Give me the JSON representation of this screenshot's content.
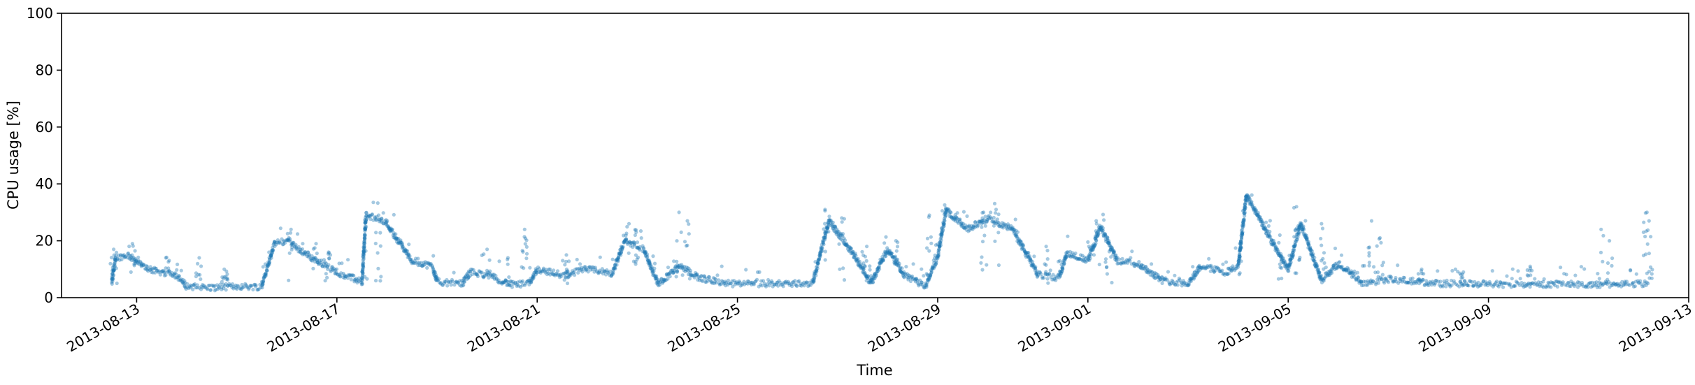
{
  "chart_data": {
    "type": "scatter",
    "title": "",
    "xlabel": "Time",
    "ylabel": "CPU usage [%]",
    "ylim": [
      0,
      100
    ],
    "xlim": [
      "2013-08-11T12:00",
      "2013-09-13T00:00"
    ],
    "yticks": [
      "0",
      "20",
      "40",
      "60",
      "80",
      "100"
    ],
    "xticks": [
      "2013-08-13",
      "2013-08-17",
      "2013-08-21",
      "2013-08-25",
      "2013-08-29",
      "2013-09-01",
      "2013-09-05",
      "2013-09-09",
      "2013-09-13"
    ],
    "grid": false,
    "legend": "none",
    "colors": {
      "point": "#1f77b4",
      "axes": "#000000"
    },
    "marker_opacity": 0.4,
    "series": [
      {
        "trend": [
          [
            "2013-08-12T12:00",
            5
          ],
          [
            "2013-08-12T14:00",
            14
          ],
          [
            "2013-08-12T20:00",
            15
          ],
          [
            "2013-08-13T03:00",
            11
          ],
          [
            "2013-08-13T10:00",
            9
          ],
          [
            "2013-08-13T18:00",
            8.5
          ],
          [
            "2013-08-14T00:00",
            4
          ],
          [
            "2013-08-14T12:00",
            3.5
          ],
          [
            "2013-08-15T00:00",
            4
          ],
          [
            "2013-08-15T12:00",
            3.8
          ],
          [
            "2013-08-15T18:00",
            19
          ],
          [
            "2013-08-16T00:00",
            20
          ],
          [
            "2013-08-16T12:00",
            14
          ],
          [
            "2013-08-17T00:00",
            9
          ],
          [
            "2013-08-17T12:00",
            5.5
          ],
          [
            "2013-08-17T14:00",
            29
          ],
          [
            "2013-08-17T23:00",
            27
          ],
          [
            "2013-08-18T12:00",
            13
          ],
          [
            "2013-08-18T22:00",
            11
          ],
          [
            "2013-08-19T00:00",
            5.5
          ],
          [
            "2013-08-19T12:00",
            5
          ],
          [
            "2013-08-19T16:00",
            9
          ],
          [
            "2013-08-20T00:00",
            8
          ],
          [
            "2013-08-20T12:00",
            4.5
          ],
          [
            "2013-08-20T20:00",
            5
          ],
          [
            "2013-08-21T00:00",
            10
          ],
          [
            "2013-08-21T12:00",
            8
          ],
          [
            "2013-08-22T00:00",
            10
          ],
          [
            "2013-08-22T12:00",
            8.5
          ],
          [
            "2013-08-22T18:00",
            20
          ],
          [
            "2013-08-23T03:00",
            17
          ],
          [
            "2013-08-23T10:00",
            5
          ],
          [
            "2013-08-23T20:00",
            11
          ],
          [
            "2013-08-24T06:00",
            7
          ],
          [
            "2013-08-24T18:00",
            5
          ],
          [
            "2013-08-25T06:00",
            4.8
          ],
          [
            "2013-08-26T00:00",
            5
          ],
          [
            "2013-08-26T12:00",
            5
          ],
          [
            "2013-08-26T20:00",
            27
          ],
          [
            "2013-08-27T08:00",
            15
          ],
          [
            "2013-08-27T16:00",
            5
          ],
          [
            "2013-08-28T00:00",
            17
          ],
          [
            "2013-08-28T08:00",
            8
          ],
          [
            "2013-08-28T18:00",
            4
          ],
          [
            "2013-08-29T00:00",
            14
          ],
          [
            "2013-08-29T04:00",
            31
          ],
          [
            "2013-08-29T14:00",
            24
          ],
          [
            "2013-08-30T00:00",
            28
          ],
          [
            "2013-08-30T12:00",
            24
          ],
          [
            "2013-08-31T00:00",
            8
          ],
          [
            "2013-08-31T10:00",
            7
          ],
          [
            "2013-08-31T14:00",
            16
          ],
          [
            "2013-09-01T00:00",
            13
          ],
          [
            "2013-09-01T06:00",
            25
          ],
          [
            "2013-09-01T14:00",
            13
          ],
          [
            "2013-09-02T00:00",
            12
          ],
          [
            "2013-09-02T12:00",
            6
          ],
          [
            "2013-09-03T00:00",
            5
          ],
          [
            "2013-09-03T06:00",
            11
          ],
          [
            "2013-09-03T18:00",
            9
          ],
          [
            "2013-09-04T00:00",
            11
          ],
          [
            "2013-09-04T04:00",
            36
          ],
          [
            "2013-09-04T16:00",
            20
          ],
          [
            "2013-09-05T00:00",
            10
          ],
          [
            "2013-09-05T06:00",
            26
          ],
          [
            "2013-09-05T16:00",
            6
          ],
          [
            "2013-09-06T00:00",
            12
          ],
          [
            "2013-09-06T12:00",
            5
          ],
          [
            "2013-09-07T00:00",
            6.5
          ],
          [
            "2013-09-08T00:00",
            5
          ],
          [
            "2013-09-09T00:00",
            4.8
          ],
          [
            "2013-09-10T00:00",
            4.5
          ],
          [
            "2013-09-10T12:00",
            5
          ],
          [
            "2013-09-11T00:00",
            4.5
          ],
          [
            "2013-09-12T00:00",
            5
          ],
          [
            "2013-09-12T05:00",
            5
          ]
        ]
      }
    ],
    "spikes": [
      [
        "2013-08-12T13:00",
        17
      ],
      [
        "2013-08-12T22:00",
        19
      ],
      [
        "2013-08-13T14:00",
        14
      ],
      [
        "2013-08-14T06:00",
        14
      ],
      [
        "2013-08-14T18:00",
        10
      ],
      [
        "2013-08-16T02:00",
        24
      ],
      [
        "2013-08-16T14:00",
        19
      ],
      [
        "2013-08-16T20:00",
        16
      ],
      [
        "2013-08-17T14:00",
        25
      ],
      [
        "2013-08-17T20:00",
        29
      ],
      [
        "2013-08-20T00:00",
        17
      ],
      [
        "2013-08-20T10:00",
        14
      ],
      [
        "2013-08-20T18:00",
        24
      ],
      [
        "2013-08-21T14:00",
        15
      ],
      [
        "2013-08-22T20:00",
        26
      ],
      [
        "2013-08-22T23:00",
        22
      ],
      [
        "2013-08-23T20:00",
        30
      ],
      [
        "2013-08-24T00:00",
        27
      ],
      [
        "2013-08-26T18:00",
        31
      ],
      [
        "2013-08-27T02:00",
        28
      ],
      [
        "2013-08-27T14:00",
        18
      ],
      [
        "2013-08-28T04:00",
        20
      ],
      [
        "2013-08-28T20:00",
        29
      ],
      [
        "2013-08-29T22:00",
        30
      ],
      [
        "2013-08-30T04:00",
        31
      ],
      [
        "2013-08-31T04:00",
        18
      ],
      [
        "2013-09-01T04:00",
        27
      ],
      [
        "2013-09-01T10:00",
        20
      ],
      [
        "2013-09-04T02:00",
        24
      ],
      [
        "2013-09-04T20:00",
        22
      ],
      [
        "2013-09-05T04:00",
        32
      ],
      [
        "2013-09-05T16:00",
        26
      ],
      [
        "2013-09-06T16:00",
        27
      ],
      [
        "2013-09-06T20:00",
        21
      ],
      [
        "2013-09-07T16:00",
        10
      ],
      [
        "2013-09-08T12:00",
        9
      ],
      [
        "2013-09-09T20:00",
        11
      ],
      [
        "2013-09-11T06:00",
        24
      ],
      [
        "2013-09-11T10:00",
        20
      ],
      [
        "2013-09-12T04:00",
        30
      ],
      [
        "2013-09-12T05:00",
        27
      ]
    ]
  }
}
